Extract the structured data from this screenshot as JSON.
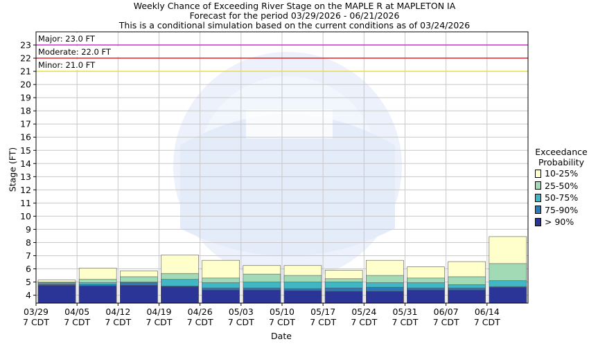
{
  "chart_data": {
    "type": "bar",
    "title": "Weekly Chance of Exceeding River Stage on the MAPLE R at MAPLETON IA",
    "subtitle_1": "Forecast for the period 03/29/2026 - 06/21/2026",
    "subtitle_2": "This is a conditional simulation based on the current conditions as of 03/24/2026",
    "xlabel": "Date",
    "ylabel": "Stage (FT)",
    "ylim": [
      3.4,
      24.0
    ],
    "yticks": [
      4,
      5,
      6,
      7,
      8,
      9,
      10,
      11,
      12,
      13,
      14,
      15,
      16,
      17,
      18,
      19,
      20,
      21,
      22,
      23
    ],
    "categories": [
      "03/29",
      "04/05",
      "04/12",
      "04/19",
      "04/26",
      "05/03",
      "05/10",
      "05/17",
      "05/24",
      "05/31",
      "06/07",
      "06/14"
    ],
    "category_sub": "7 CDT",
    "grid": true,
    "legend_title": [
      "Exceedance",
      "Probability"
    ],
    "series": [
      {
        "name": "> 90%",
        "color": "#2a3597",
        "values": [
          4.75,
          4.7,
          4.75,
          4.65,
          4.4,
          4.4,
          4.35,
          4.3,
          4.3,
          4.4,
          4.4,
          4.6
        ]
      },
      {
        "name": "75-90%",
        "color": "#2b7bb9",
        "values": [
          4.85,
          4.8,
          4.95,
          4.7,
          4.55,
          4.55,
          4.5,
          4.55,
          4.6,
          4.55,
          4.55,
          4.65
        ]
      },
      {
        "name": "50-75%",
        "color": "#41b6c4",
        "values": [
          4.95,
          4.95,
          5.0,
          5.2,
          4.95,
          5.0,
          5.0,
          5.0,
          4.95,
          4.95,
          4.8,
          5.1
        ]
      },
      {
        "name": "25-50%",
        "color": "#a1dab4",
        "values": [
          5.0,
          5.2,
          5.4,
          5.65,
          5.3,
          5.6,
          5.5,
          5.25,
          5.5,
          5.3,
          5.4,
          6.4
        ]
      },
      {
        "name": "10-25%",
        "color": "#ffffcc",
        "values": [
          5.15,
          6.05,
          5.85,
          7.05,
          6.65,
          6.25,
          6.25,
          5.9,
          6.65,
          6.15,
          6.55,
          8.45
        ]
      }
    ],
    "thresholds": [
      {
        "label": "Major: 23.0 FT",
        "value": 23.0,
        "color": "#cc33cc"
      },
      {
        "label": "Moderate: 22.0 FT",
        "value": 22.0,
        "color": "#e8222b"
      },
      {
        "label": "Minor: 21.0 FT",
        "value": 21.0,
        "color": "#f0e030"
      }
    ],
    "legend_placement": "right"
  },
  "watermark": "NATIONAL OCEANIC AND ATMOSPHERIC ADMINISTRATION NOAA U.S. DEPARTMENT OF COMMERCE"
}
